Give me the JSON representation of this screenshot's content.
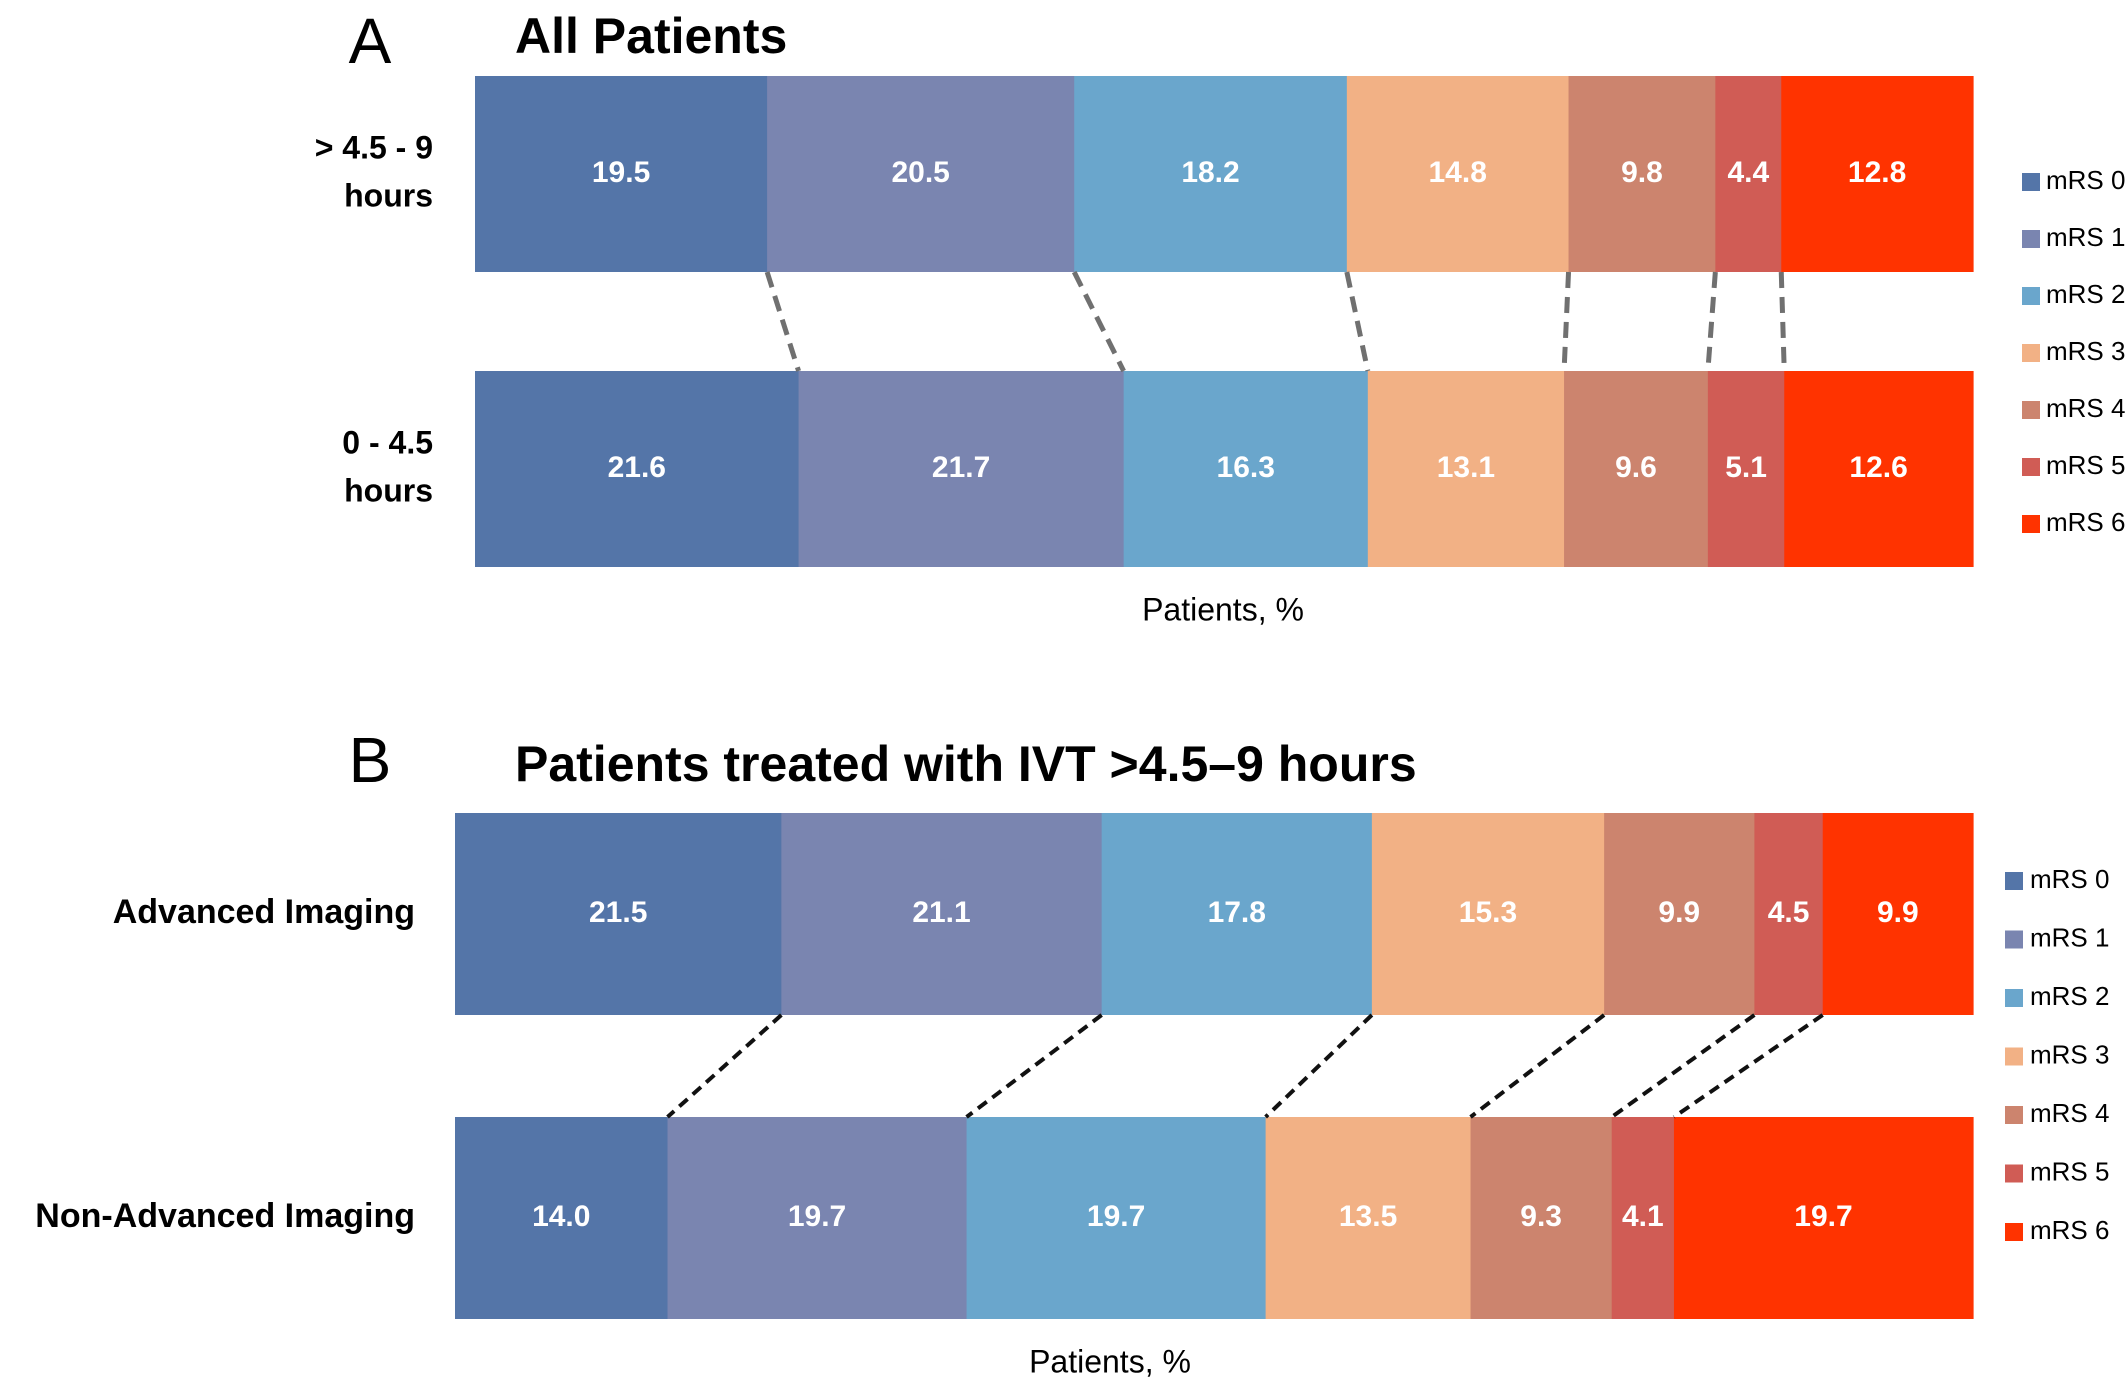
{
  "colors": {
    "mRS 0": "#5475a8",
    "mRS 1": "#7a85b0",
    "mRS 2": "#6aa6cc",
    "mRS 3": "#f2b185",
    "mRS 4": "#cc846e",
    "mRS 5": "#d05c55",
    "mRS 6": "#ff3300"
  },
  "chart_data": [
    {
      "type": "bar",
      "stacked": true,
      "orientation": "horizontal",
      "panel_letter": "A",
      "title": "All Patients",
      "xlabel": "Patients, %",
      "categories": [
        "> 4.5 - 9 hours",
        "0 - 4.5 hours"
      ],
      "category_lines": [
        [
          "> 4.5 - 9",
          "hours"
        ],
        [
          "0 - 4.5",
          "hours"
        ]
      ],
      "series": [
        {
          "name": "mRS 0",
          "values": [
            19.5,
            21.6
          ]
        },
        {
          "name": "mRS 1",
          "values": [
            20.5,
            21.7
          ]
        },
        {
          "name": "mRS 2",
          "values": [
            18.2,
            16.3
          ]
        },
        {
          "name": "mRS 3",
          "values": [
            14.8,
            13.1
          ]
        },
        {
          "name": "mRS 4",
          "values": [
            9.8,
            9.6
          ]
        },
        {
          "name": "mRS 5",
          "values": [
            4.4,
            5.1
          ]
        },
        {
          "name": "mRS 6",
          "values": [
            12.8,
            12.6
          ]
        }
      ],
      "value_labels": [
        [
          "19.5",
          "20.5",
          "18.2",
          "14.8",
          "9.8",
          "4.4",
          "12.8"
        ],
        [
          "21.6",
          "21.7",
          "16.3",
          "13.1",
          "9.6",
          "5.1",
          "12.6"
        ]
      ],
      "legend": [
        "mRS 0",
        "mRS 1",
        "mRS 2",
        "mRS 3",
        "mRS 4",
        "mRS 5",
        "mRS 6"
      ],
      "legend_position": "right",
      "connector_style": "gray dashed"
    },
    {
      "type": "bar",
      "stacked": true,
      "orientation": "horizontal",
      "panel_letter": "B",
      "title": "Patients treated with IVT >4.5–9 hours",
      "xlabel": "Patients, %",
      "categories": [
        "Advanced Imaging",
        "Non-Advanced Imaging"
      ],
      "category_lines": [
        [
          "Advanced Imaging"
        ],
        [
          "Non-Advanced Imaging"
        ]
      ],
      "series": [
        {
          "name": "mRS 0",
          "values": [
            21.5,
            14.0
          ]
        },
        {
          "name": "mRS 1",
          "values": [
            21.1,
            19.7
          ]
        },
        {
          "name": "mRS 2",
          "values": [
            17.8,
            19.7
          ]
        },
        {
          "name": "mRS 3",
          "values": [
            15.3,
            13.5
          ]
        },
        {
          "name": "mRS 4",
          "values": [
            9.9,
            9.3
          ]
        },
        {
          "name": "mRS 5",
          "values": [
            4.5,
            4.1
          ]
        },
        {
          "name": "mRS 6",
          "values": [
            9.9,
            19.7
          ]
        }
      ],
      "value_labels": [
        [
          "21.5",
          "21.1",
          "17.8",
          "15.3",
          "9.9",
          "4.5",
          "9.9"
        ],
        [
          "14.0",
          "19.7",
          "19.7",
          "13.5",
          "9.3",
          "4.1",
          "19.7"
        ]
      ],
      "legend": [
        "mRS 0",
        "mRS 1",
        "mRS 2",
        "mRS 3",
        "mRS 4",
        "mRS 5",
        "mRS 6"
      ],
      "legend_position": "right",
      "connector_style": "black dashed"
    }
  ]
}
